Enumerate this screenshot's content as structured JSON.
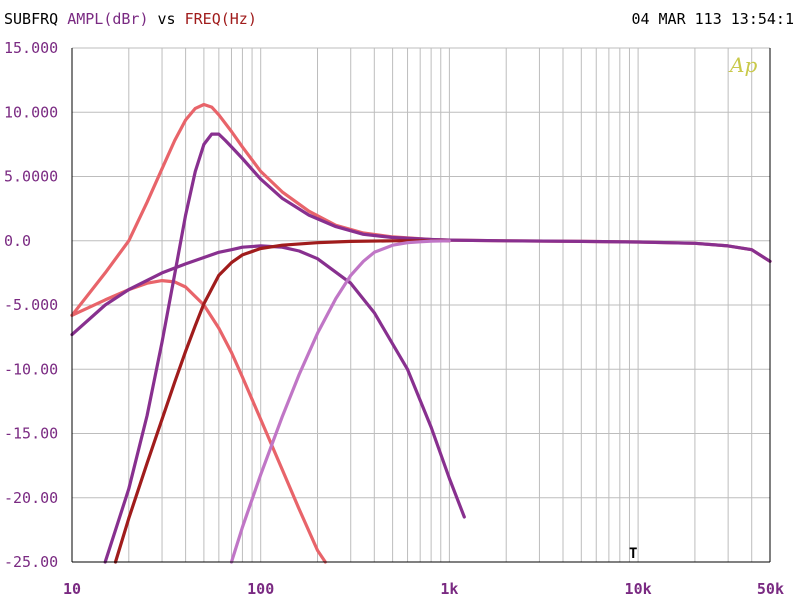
{
  "header": {
    "left_prefix": "SUBFRQ",
    "ampl_label": "AMPL(dBr)",
    "vs": "vs",
    "freq_label": "FREQ(Hz)",
    "timestamp": "04 MAR 113 13:54:1"
  },
  "colors": {
    "grid": "#bdbdbd",
    "axis": "#000000",
    "salmon": "#e8646a",
    "purple": "#88308f",
    "darkred": "#a01c1c",
    "pink": "#c076c6",
    "ampl_label": "#7a2a82",
    "freq_label": "#a01c1c"
  },
  "logo_text": "Ap",
  "marker_text": "T",
  "chart_data": {
    "type": "line",
    "x_scale": "log",
    "xlim": [
      10,
      50000
    ],
    "ylim": [
      -25,
      15
    ],
    "xticks": [
      {
        "value": 10,
        "label": "10"
      },
      {
        "value": 100,
        "label": "100"
      },
      {
        "value": 1000,
        "label": "1k"
      },
      {
        "value": 10000,
        "label": "10k"
      },
      {
        "value": 50000,
        "label": "50k"
      }
    ],
    "yticks": [
      {
        "value": 15,
        "label": "15.000"
      },
      {
        "value": 10,
        "label": "10.000"
      },
      {
        "value": 5,
        "label": "5.0000"
      },
      {
        "value": 0,
        "label": "0.0"
      },
      {
        "value": -5,
        "label": "-5.000"
      },
      {
        "value": -10,
        "label": "-10.00"
      },
      {
        "value": -15,
        "label": "-15.00"
      },
      {
        "value": -20,
        "label": "-20.00"
      },
      {
        "value": -25,
        "label": "-25.00"
      }
    ],
    "grid": true,
    "series": [
      {
        "color_key": "salmon",
        "x": [
          10,
          15,
          20,
          25,
          30,
          35,
          40,
          45,
          50,
          55,
          60,
          70,
          80,
          100,
          130,
          180,
          250,
          350,
          500,
          800,
          1000,
          2000,
          5000,
          10000,
          20000,
          30000,
          40000,
          50000
        ],
        "y": [
          -5.8,
          -2.5,
          0.0,
          3.0,
          5.6,
          7.8,
          9.4,
          10.3,
          10.6,
          10.4,
          9.8,
          8.5,
          7.3,
          5.4,
          3.8,
          2.3,
          1.2,
          0.6,
          0.3,
          0.1,
          0.05,
          0.0,
          -0.05,
          -0.1,
          -0.2,
          -0.4,
          -0.7,
          -1.6
        ]
      },
      {
        "color_key": "salmon",
        "x": [
          10,
          15,
          20,
          25,
          30,
          35,
          40,
          50,
          60,
          70,
          80,
          100,
          130,
          160,
          200,
          220
        ],
        "y": [
          -5.8,
          -4.6,
          -3.8,
          -3.3,
          -3.1,
          -3.2,
          -3.6,
          -5.0,
          -6.8,
          -8.7,
          -10.6,
          -13.9,
          -17.8,
          -20.9,
          -24.1,
          -25.0
        ]
      },
      {
        "color_key": "purple",
        "x": [
          10,
          15,
          20,
          30,
          40,
          50,
          60,
          70,
          80,
          100,
          130,
          160,
          200,
          300,
          400,
          600,
          800,
          1000,
          1200
        ],
        "y": [
          -7.3,
          -5.0,
          -3.8,
          -2.5,
          -1.8,
          -1.3,
          -0.9,
          -0.7,
          -0.5,
          -0.4,
          -0.5,
          -0.8,
          -1.4,
          -3.3,
          -5.6,
          -10.0,
          -14.5,
          -18.5,
          -21.5
        ]
      },
      {
        "color_key": "purple",
        "x": [
          15,
          20,
          25,
          30,
          35,
          40,
          45,
          50,
          55,
          60,
          65,
          70,
          80,
          100,
          130,
          180,
          250,
          350,
          500,
          800,
          1000,
          2000,
          5000,
          10000,
          20000,
          30000,
          40000,
          50000
        ],
        "y": [
          -25.0,
          -19.3,
          -13.6,
          -7.9,
          -2.6,
          2.0,
          5.4,
          7.5,
          8.3,
          8.3,
          7.8,
          7.3,
          6.4,
          4.8,
          3.3,
          2.0,
          1.1,
          0.5,
          0.25,
          0.1,
          0.05,
          0.0,
          -0.05,
          -0.1,
          -0.2,
          -0.4,
          -0.7,
          -1.6
        ]
      },
      {
        "color_key": "darkred",
        "x": [
          17,
          20,
          25,
          30,
          35,
          40,
          45,
          50,
          60,
          70,
          80,
          100,
          130,
          200,
          300,
          500,
          1000
        ],
        "y": [
          -25.0,
          -21.6,
          -17.3,
          -13.9,
          -11.0,
          -8.6,
          -6.6,
          -4.9,
          -2.7,
          -1.7,
          -1.1,
          -0.6,
          -0.35,
          -0.15,
          -0.05,
          0.0,
          0.0
        ]
      },
      {
        "color_key": "pink",
        "x": [
          70,
          80,
          100,
          130,
          160,
          200,
          250,
          300,
          350,
          400,
          500,
          600,
          700,
          800,
          1000
        ],
        "y": [
          -25.0,
          -22.3,
          -18.2,
          -13.7,
          -10.4,
          -7.2,
          -4.5,
          -2.7,
          -1.6,
          -0.9,
          -0.35,
          -0.15,
          -0.08,
          -0.03,
          0.0
        ]
      }
    ]
  }
}
